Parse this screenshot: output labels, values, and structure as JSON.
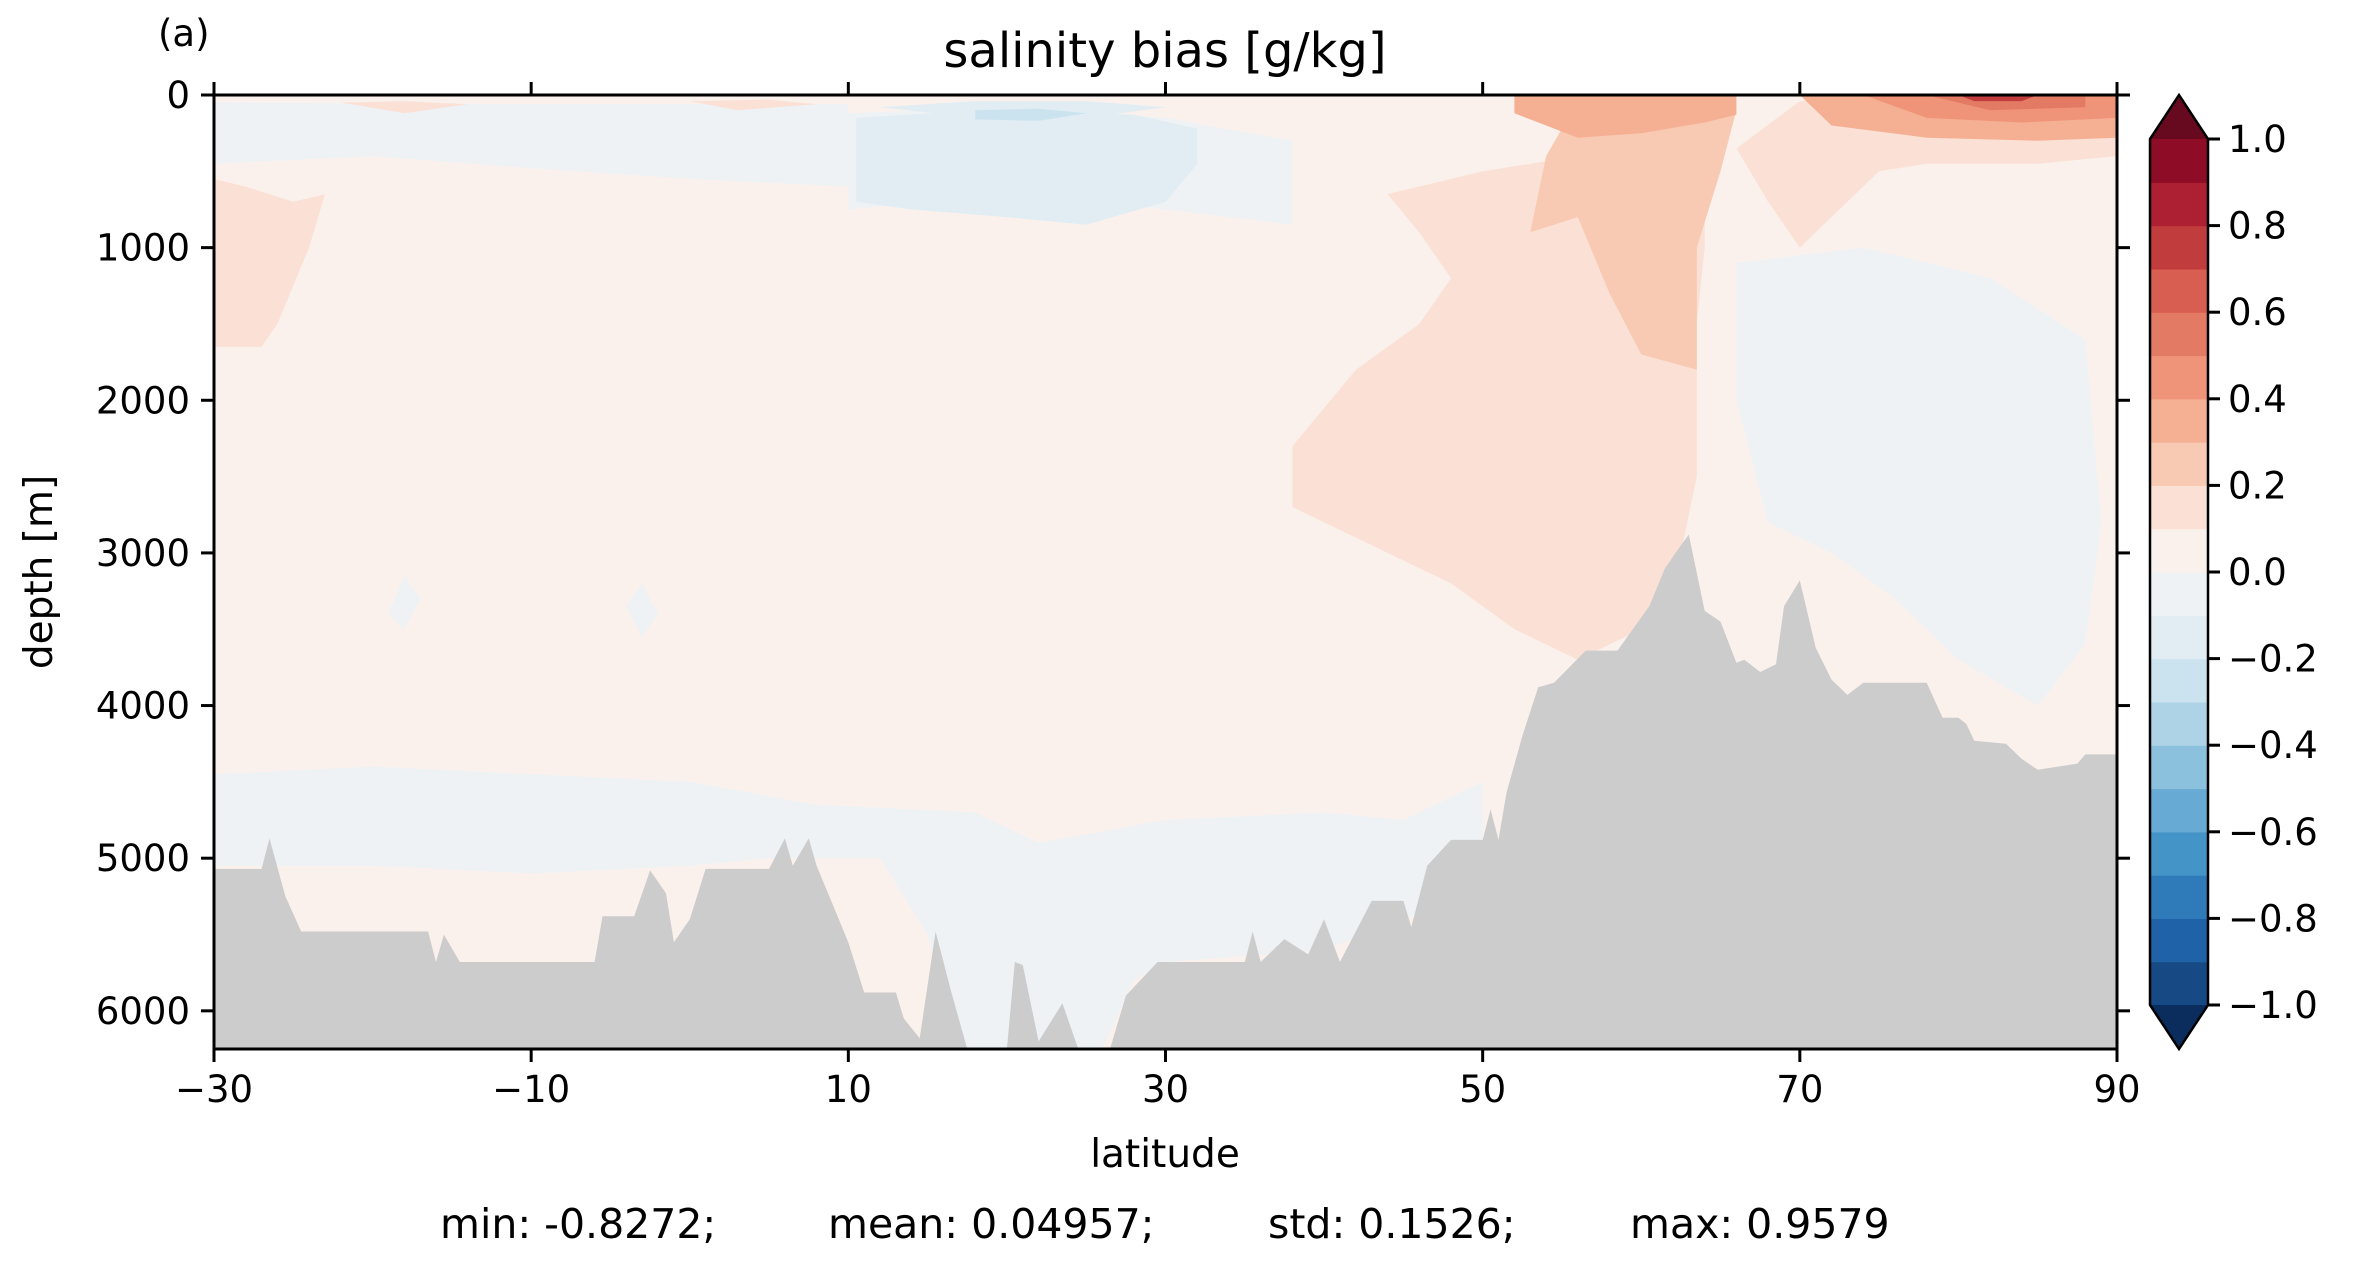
{
  "chart_data": {
    "type": "heatmap",
    "panel_label": "(a)",
    "title": "salinity bias [g/kg]",
    "xlabel": "latitude",
    "ylabel": "depth [m]",
    "xlim": [
      -30,
      90
    ],
    "ylim": [
      6250,
      0
    ],
    "x_ticks": [
      -30,
      -10,
      10,
      30,
      50,
      70,
      90
    ],
    "x_tick_labels": [
      "−30",
      "−10",
      "10",
      "30",
      "50",
      "70",
      "90"
    ],
    "y_ticks": [
      0,
      1000,
      2000,
      3000,
      4000,
      5000,
      6000
    ],
    "y_tick_labels": [
      "0",
      "1000",
      "2000",
      "3000",
      "4000",
      "5000",
      "6000"
    ],
    "colorbar": {
      "levels": [
        -1.0,
        -0.9,
        -0.8,
        -0.7,
        -0.6,
        -0.5,
        -0.4,
        -0.3,
        -0.2,
        -0.1,
        0.0,
        0.1,
        0.2,
        0.3,
        0.4,
        0.5,
        0.6,
        0.7,
        0.8,
        0.9,
        1.0
      ],
      "colors": [
        "#174a84",
        "#1f62a8",
        "#2f7ab9",
        "#4494c7",
        "#67aad3",
        "#8cc1dd",
        "#aed3e7",
        "#cbe3ef",
        "#e1edf3",
        "#eef2f5",
        "#faf1ed",
        "#fbe1d5",
        "#f8cab4",
        "#f5b094",
        "#ef9479",
        "#e37a64",
        "#d75e51",
        "#c13c3c",
        "#ad1f32",
        "#8f0c26"
      ],
      "under_color": "#0b2d5e",
      "over_color": "#670a1f",
      "extend": "both",
      "tick_values": [
        1.0,
        0.8,
        0.6,
        0.4,
        0.2,
        0.0,
        -0.2,
        -0.4,
        -0.6,
        -0.8,
        -1.0
      ],
      "tick_labels": [
        "1.0",
        "0.8",
        "0.6",
        "0.4",
        "0.2",
        "0.0",
        "−0.2",
        "−0.4",
        "−0.6",
        "−0.8",
        "−1.0"
      ]
    },
    "bathymetry_color": "#cccccc",
    "bathymetry": [
      [
        -30,
        5070
      ],
      [
        -27,
        5070
      ],
      [
        -26.5,
        4870
      ],
      [
        -25.5,
        5250
      ],
      [
        -24.5,
        5480
      ],
      [
        -16.5,
        5480
      ],
      [
        -16,
        5680
      ],
      [
        -15.5,
        5500
      ],
      [
        -14.5,
        5680
      ],
      [
        -6,
        5680
      ],
      [
        -5.5,
        5380
      ],
      [
        -3.5,
        5380
      ],
      [
        -2.5,
        5080
      ],
      [
        -1.5,
        5230
      ],
      [
        -1,
        5550
      ],
      [
        0,
        5400
      ],
      [
        1,
        5070
      ],
      [
        5,
        5070
      ],
      [
        6,
        4870
      ],
      [
        6.5,
        5050
      ],
      [
        7.5,
        4870
      ],
      [
        8,
        5050
      ],
      [
        9,
        5300
      ],
      [
        10,
        5550
      ],
      [
        11,
        5880
      ],
      [
        13,
        5880
      ],
      [
        13.5,
        6050
      ],
      [
        14.5,
        6180
      ],
      [
        15.5,
        5480
      ],
      [
        16.5,
        5880
      ],
      [
        17.5,
        6250
      ],
      [
        20,
        6250
      ],
      [
        20.5,
        5680
      ],
      [
        21,
        5700
      ],
      [
        22,
        6200
      ],
      [
        23.5,
        5950
      ],
      [
        24.5,
        6250
      ],
      [
        26.5,
        6250
      ],
      [
        27.5,
        5900
      ],
      [
        29.5,
        5680
      ],
      [
        35,
        5680
      ],
      [
        35.5,
        5480
      ],
      [
        36,
        5680
      ],
      [
        37.5,
        5530
      ],
      [
        39,
        5630
      ],
      [
        40,
        5400
      ],
      [
        41,
        5680
      ],
      [
        43,
        5280
      ],
      [
        45,
        5280
      ],
      [
        45.5,
        5450
      ],
      [
        46.5,
        5050
      ],
      [
        48,
        4880
      ],
      [
        50,
        4880
      ],
      [
        50.5,
        4680
      ],
      [
        51,
        4880
      ],
      [
        51.5,
        4570
      ],
      [
        52.5,
        4200
      ],
      [
        53.5,
        3880
      ],
      [
        54.5,
        3850
      ],
      [
        56.5,
        3640
      ],
      [
        58.5,
        3640
      ],
      [
        60.5,
        3350
      ],
      [
        61.5,
        3100
      ],
      [
        62.5,
        2950
      ],
      [
        63,
        2880
      ],
      [
        64,
        3380
      ],
      [
        65,
        3450
      ],
      [
        66,
        3720
      ],
      [
        66.5,
        3700
      ],
      [
        67.5,
        3780
      ],
      [
        68.5,
        3730
      ],
      [
        69,
        3350
      ],
      [
        70,
        3180
      ],
      [
        71,
        3620
      ],
      [
        72,
        3830
      ],
      [
        73,
        3930
      ],
      [
        74,
        3850
      ],
      [
        78,
        3850
      ],
      [
        79,
        4080
      ],
      [
        80,
        4080
      ],
      [
        80.5,
        4120
      ],
      [
        81,
        4230
      ],
      [
        83,
        4250
      ],
      [
        84,
        4350
      ],
      [
        85,
        4420
      ],
      [
        87.5,
        4380
      ],
      [
        88,
        4320
      ],
      [
        90,
        4320
      ]
    ],
    "regions": [
      {
        "value": 0.05,
        "points": [
          [
            -30,
            0
          ],
          [
            90,
            0
          ],
          [
            90,
            4300
          ],
          [
            88,
            4300
          ],
          [
            86,
            4380
          ],
          [
            84,
            4300
          ],
          [
            80,
            4100
          ],
          [
            72,
            3800
          ],
          [
            66,
            3500
          ],
          [
            62.5,
            2880
          ],
          [
            60,
            3400
          ],
          [
            55,
            3650
          ],
          [
            52,
            4050
          ],
          [
            50,
            4500
          ],
          [
            45,
            4750
          ],
          [
            40,
            4700
          ],
          [
            30,
            4750
          ],
          [
            22,
            4900
          ],
          [
            18,
            4700
          ],
          [
            8,
            4650
          ],
          [
            0,
            4500
          ],
          [
            -20,
            4400
          ],
          [
            -30,
            4450
          ]
        ]
      },
      {
        "value": -0.05,
        "points": [
          [
            -30,
            4450
          ],
          [
            -20,
            4400
          ],
          [
            0,
            4500
          ],
          [
            8,
            4650
          ],
          [
            18,
            4700
          ],
          [
            22,
            4900
          ],
          [
            30,
            4750
          ],
          [
            40,
            4700
          ],
          [
            45,
            4750
          ],
          [
            50,
            4500
          ],
          [
            50,
            5200
          ],
          [
            40,
            5600
          ],
          [
            30,
            5680
          ],
          [
            28,
            5800
          ],
          [
            26,
            6250
          ],
          [
            17,
            6250
          ],
          [
            15,
            5500
          ],
          [
            12,
            5000
          ],
          [
            10,
            5000
          ],
          [
            5,
            5000
          ],
          [
            0,
            5050
          ],
          [
            -10,
            5100
          ],
          [
            -20,
            5050
          ],
          [
            -30,
            5050
          ]
        ]
      },
      {
        "value": -0.05,
        "points": [
          [
            10,
            120
          ],
          [
            20,
            80
          ],
          [
            30,
            150
          ],
          [
            38,
            300
          ],
          [
            38,
            850
          ],
          [
            30,
            750
          ],
          [
            20,
            650
          ],
          [
            10,
            750
          ],
          [
            10,
            600
          ],
          [
            0,
            550
          ],
          [
            -10,
            480
          ],
          [
            -20,
            400
          ],
          [
            -30,
            450
          ],
          [
            -30,
            50
          ],
          [
            -10,
            60
          ],
          [
            0,
            60
          ],
          [
            10,
            60
          ]
        ]
      },
      {
        "value": -0.15,
        "points": [
          [
            10.5,
            150
          ],
          [
            20,
            90
          ],
          [
            28,
            130
          ],
          [
            32,
            220
          ],
          [
            32,
            450
          ],
          [
            30,
            700
          ],
          [
            25,
            850
          ],
          [
            20,
            800
          ],
          [
            14,
            750
          ],
          [
            10.5,
            700
          ]
        ]
      },
      {
        "value": -0.15,
        "points": [
          [
            12,
            80
          ],
          [
            18,
            40
          ],
          [
            25,
            40
          ],
          [
            30,
            80
          ],
          [
            25,
            150
          ],
          [
            18,
            150
          ]
        ]
      },
      {
        "value": -0.25,
        "points": [
          [
            18,
            100
          ],
          [
            22,
            90
          ],
          [
            25,
            120
          ],
          [
            22,
            170
          ],
          [
            18,
            160
          ]
        ]
      },
      {
        "value": -0.05,
        "points": [
          [
            66,
            1100
          ],
          [
            74,
            1000
          ],
          [
            82,
            1200
          ],
          [
            88,
            1600
          ],
          [
            89,
            2800
          ],
          [
            88,
            3600
          ],
          [
            85,
            4000
          ],
          [
            80,
            3700
          ],
          [
            76,
            3300
          ],
          [
            72,
            3000
          ],
          [
            68,
            2800
          ],
          [
            66,
            2000
          ]
        ]
      },
      {
        "value": -0.05,
        "points": [
          [
            -18,
            3150
          ],
          [
            -17,
            3300
          ],
          [
            -18,
            3500
          ],
          [
            -19,
            3400
          ]
        ]
      },
      {
        "value": -0.05,
        "points": [
          [
            -3,
            3200
          ],
          [
            -2,
            3400
          ],
          [
            -3,
            3550
          ],
          [
            -4,
            3350
          ]
        ]
      },
      {
        "value": 0.15,
        "points": [
          [
            44,
            650
          ],
          [
            50,
            500
          ],
          [
            56,
            400
          ],
          [
            60,
            300
          ],
          [
            64,
            350
          ],
          [
            64,
            600
          ],
          [
            64,
            1000
          ],
          [
            63.5,
            1500
          ],
          [
            63.5,
            2500
          ],
          [
            62.5,
            3000
          ],
          [
            60,
            3500
          ],
          [
            56,
            3700
          ],
          [
            52,
            3500
          ],
          [
            48,
            3200
          ],
          [
            44,
            3000
          ],
          [
            38,
            2700
          ],
          [
            38,
            2300
          ],
          [
            42,
            1800
          ],
          [
            46,
            1500
          ],
          [
            48,
            1200
          ],
          [
            46,
            900
          ]
        ]
      },
      {
        "value": 0.15,
        "points": [
          [
            -30,
            550
          ],
          [
            -28,
            600
          ],
          [
            -25,
            700
          ],
          [
            -23,
            650
          ],
          [
            -24,
            1000
          ],
          [
            -26,
            1500
          ],
          [
            -27,
            1650
          ],
          [
            -30,
            1650
          ]
        ]
      },
      {
        "value": 0.15,
        "points": [
          [
            70,
            40
          ],
          [
            80,
            60
          ],
          [
            88,
            100
          ],
          [
            90,
            120
          ],
          [
            90,
            400
          ],
          [
            85,
            450
          ],
          [
            78,
            450
          ],
          [
            75,
            500
          ],
          [
            72,
            800
          ],
          [
            70,
            1000
          ],
          [
            68,
            700
          ],
          [
            66,
            350
          ]
        ]
      },
      {
        "value": 0.25,
        "points": [
          [
            56,
            40
          ],
          [
            62,
            40
          ],
          [
            66,
            100
          ],
          [
            65,
            500
          ],
          [
            63.5,
            1000
          ],
          [
            63.5,
            1800
          ],
          [
            60,
            1700
          ],
          [
            58,
            1300
          ],
          [
            56,
            800
          ],
          [
            53,
            900
          ],
          [
            54,
            400
          ]
        ]
      },
      {
        "value": 0.35,
        "points": [
          [
            52,
            0
          ],
          [
            66,
            0
          ],
          [
            66,
            130
          ],
          [
            64,
            180
          ],
          [
            60,
            250
          ],
          [
            56,
            280
          ],
          [
            52,
            120
          ]
        ]
      },
      {
        "value": 0.35,
        "points": [
          [
            70,
            0
          ],
          [
            90,
            0
          ],
          [
            90,
            280
          ],
          [
            85,
            300
          ],
          [
            78,
            280
          ],
          [
            72,
            200
          ]
        ]
      },
      {
        "value": 0.45,
        "points": [
          [
            74,
            0
          ],
          [
            90,
            0
          ],
          [
            90,
            150
          ],
          [
            84,
            180
          ],
          [
            78,
            150
          ]
        ]
      },
      {
        "value": 0.55,
        "points": [
          [
            78,
            0
          ],
          [
            88,
            0
          ],
          [
            88,
            80
          ],
          [
            82,
            100
          ]
        ]
      },
      {
        "value": 0.75,
        "points": [
          [
            80,
            0
          ],
          [
            85,
            0
          ],
          [
            84,
            40
          ],
          [
            81,
            40
          ]
        ]
      },
      {
        "value": 0.15,
        "points": [
          [
            -22,
            50
          ],
          [
            -18,
            40
          ],
          [
            -14,
            60
          ],
          [
            -18,
            120
          ]
        ]
      },
      {
        "value": 0.15,
        "points": [
          [
            0,
            40
          ],
          [
            5,
            30
          ],
          [
            8,
            60
          ],
          [
            3,
            100
          ]
        ]
      }
    ]
  },
  "stats": {
    "min": "min: -0.8272;",
    "mean": "mean: 0.04957;",
    "std": "std: 0.1526;",
    "max": "max: 0.9579"
  }
}
